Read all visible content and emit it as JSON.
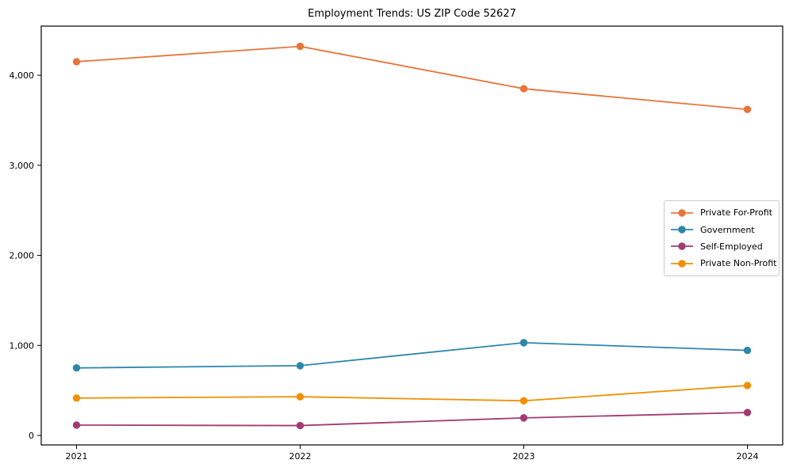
{
  "chart_data": {
    "type": "line",
    "title": "Employment Trends: US ZIP Code 52627",
    "xlabel": "",
    "ylabel": "",
    "grid": false,
    "legend_position": "center right",
    "marker": "circle",
    "categories": [
      "2021",
      "2022",
      "2023",
      "2024"
    ],
    "series": [
      {
        "name": "Private For-Profit",
        "color": "#E8743B",
        "values": [
          4150,
          4320,
          3850,
          3620
        ]
      },
      {
        "name": "Government",
        "color": "#2E86AB",
        "values": [
          750,
          775,
          1030,
          945
        ]
      },
      {
        "name": "Self-Employed",
        "color": "#A23B72",
        "values": [
          115,
          110,
          195,
          255
        ]
      },
      {
        "name": "Private Non-Profit",
        "color": "#F18F01",
        "values": [
          415,
          430,
          385,
          555
        ]
      }
    ],
    "yticks": [
      0,
      1000,
      2000,
      3000,
      4000
    ],
    "ytick_labels": [
      "0",
      "1,000",
      "2,000",
      "3,000",
      "4,000"
    ],
    "ylim": [
      -105,
      4545
    ],
    "axis_color": "#000000",
    "background_color": "#ffffff"
  }
}
